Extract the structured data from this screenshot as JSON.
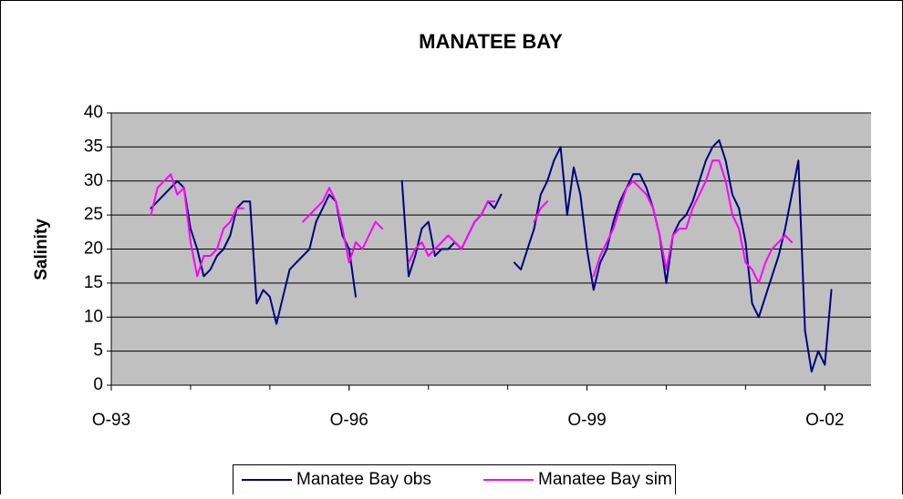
{
  "chart_data": {
    "type": "line",
    "title": "MANATEE BAY",
    "y_label": "Salinity",
    "x": [
      "1994-04",
      "1994-05",
      "1994-06",
      "1994-07",
      "1994-08",
      "1994-09",
      "1994-10",
      "1994-11",
      "1994-12",
      "1995-01",
      "1995-02",
      "1995-03",
      "1995-04",
      "1995-05",
      "1995-06",
      "1995-07",
      "1995-08",
      "1995-09",
      "1995-10",
      "1995-11",
      "1995-12",
      "1996-01",
      "1996-02",
      "1996-03",
      "1996-04",
      "1996-05",
      "1996-06",
      "1996-07",
      "1996-08",
      "1996-09",
      "1996-10",
      "1996-11",
      "1996-12",
      "1997-01",
      "1997-02",
      "1997-03",
      "1997-04",
      "1997-05",
      "1997-06",
      "1997-07",
      "1997-08",
      "1997-09",
      "1997-10",
      "1997-11",
      "1997-12",
      "1998-01",
      "1998-02",
      "1998-03",
      "1998-04",
      "1998-05",
      "1998-06",
      "1998-07",
      "1998-08",
      "1998-09",
      "1998-10",
      "1998-11",
      "1998-12",
      "1999-01",
      "1999-02",
      "1999-03",
      "1999-04",
      "1999-05",
      "1999-06",
      "1999-07",
      "1999-08",
      "1999-09",
      "1999-10",
      "1999-11",
      "1999-12",
      "2000-01",
      "2000-02",
      "2000-03",
      "2000-04",
      "2000-05",
      "2000-06",
      "2000-07",
      "2000-08",
      "2000-09",
      "2000-10",
      "2000-11",
      "2000-12",
      "2001-01",
      "2001-02",
      "2001-03",
      "2001-04",
      "2001-05",
      "2001-06",
      "2001-07",
      "2001-08",
      "2001-09",
      "2001-10",
      "2001-11",
      "2001-12",
      "2002-01",
      "2002-02",
      "2002-03",
      "2002-04",
      "2002-05",
      "2002-06",
      "2002-07",
      "2002-08",
      "2002-09",
      "2002-10",
      "2002-11"
    ],
    "series": [
      {
        "name": "Manatee Bay obs",
        "color": "#000080",
        "values": [
          26,
          27,
          28,
          29,
          30,
          29,
          23,
          20,
          16,
          17,
          19,
          20,
          22,
          26,
          27,
          27,
          12,
          14,
          13,
          9,
          13,
          17,
          18,
          19,
          20,
          24,
          26,
          28,
          27,
          22,
          20,
          13,
          null,
          null,
          null,
          null,
          null,
          null,
          30,
          16,
          19,
          23,
          24,
          19,
          20,
          20,
          21,
          20,
          22,
          24,
          25,
          27,
          26,
          28,
          null,
          18,
          17,
          20,
          23,
          28,
          30,
          33,
          35,
          25,
          32,
          28,
          20,
          14,
          18,
          20,
          24,
          27,
          29,
          31,
          31,
          29,
          26,
          22,
          15,
          22,
          24,
          25,
          27,
          30,
          33,
          35,
          36,
          33,
          28,
          26,
          21,
          12,
          10,
          13,
          16,
          19,
          23,
          28,
          33,
          8,
          2,
          5,
          3,
          14
        ]
      },
      {
        "name": "Manatee Bay sim",
        "color": "#ff00ff",
        "values": [
          25,
          29,
          30,
          31,
          28,
          29,
          21,
          16,
          19,
          19,
          20,
          23,
          24,
          26,
          26,
          null,
          null,
          17,
          null,
          null,
          null,
          null,
          null,
          24,
          25,
          26,
          27,
          29,
          27,
          23,
          18,
          21,
          20,
          22,
          24,
          23,
          null,
          27,
          null,
          18,
          20,
          21,
          19,
          20,
          21,
          22,
          21,
          20,
          22,
          24,
          25,
          27,
          27,
          null,
          null,
          null,
          null,
          null,
          24,
          26,
          27,
          null,
          null,
          null,
          null,
          null,
          null,
          16,
          19,
          21,
          23,
          26,
          29,
          30,
          29,
          28,
          26,
          22,
          17,
          22,
          23,
          23,
          26,
          28,
          30,
          33,
          33,
          30,
          25,
          23,
          18,
          17,
          15,
          18,
          20,
          21,
          22,
          21,
          null,
          null,
          null,
          null,
          null,
          null
        ]
      }
    ],
    "xlim": [
      "1993-10",
      "2003-05"
    ],
    "xticks": [
      {
        "value": "1993-10",
        "label": "O-93"
      },
      {
        "value": "1996-10",
        "label": "O-96"
      },
      {
        "value": "1999-10",
        "label": "O-99"
      },
      {
        "value": "2002-10",
        "label": "O-02"
      }
    ],
    "ylim": [
      0,
      40
    ],
    "yticks": [
      0,
      5,
      10,
      15,
      20,
      25,
      30,
      35,
      40
    ],
    "grid": true,
    "legend": "bottom"
  }
}
